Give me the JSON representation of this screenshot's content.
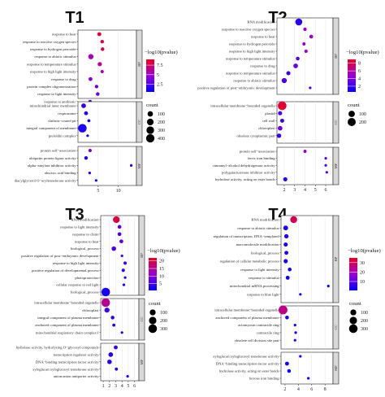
{
  "legend_labels": {
    "color_title": "−log10(pvalue)",
    "size_title": "count"
  },
  "chart_data": [
    {
      "title": "T1",
      "type": "scatter",
      "x_ticks": [
        5,
        10
      ],
      "xlim": [
        0,
        14.5
      ],
      "color_ticks": [
        2.5,
        5.0,
        7.5
      ],
      "color_range": [
        0.5,
        9
      ],
      "size_ticks": [
        100,
        200,
        300,
        400
      ],
      "size_range": [
        10,
        450
      ],
      "panels": [
        {
          "label": "BP",
          "points": [
            {
              "term": "response to heat",
              "x": 5.3,
              "count": 30,
              "color": 8.5
            },
            {
              "term": "response to reactive oxygen species",
              "x": 6.0,
              "count": 22,
              "color": 8.0
            },
            {
              "term": "response to hydrogen peroxide",
              "x": 6.1,
              "count": 22,
              "color": 7.8
            },
            {
              "term": "response to abiotic stimulus",
              "x": 3.2,
              "count": 90,
              "color": 5.5
            },
            {
              "term": "response to temperature stimulus",
              "x": 5.4,
              "count": 40,
              "color": 6.5
            },
            {
              "term": "response to high light intensity",
              "x": 6.0,
              "count": 15,
              "color": 5.5
            },
            {
              "term": "response to drug",
              "x": 3.1,
              "count": 28,
              "color": 4.0
            },
            {
              "term": "protein complex oligomerization",
              "x": 4.6,
              "count": 20,
              "color": 3.5
            },
            {
              "term": "response to light intensity",
              "x": 4.9,
              "count": 22,
              "color": 3.5
            },
            {
              "term": "response to antibiotic",
              "x": 3.0,
              "count": 18,
              "color": 3.0
            }
          ]
        },
        {
          "label": "CC",
          "points": [
            {
              "term": "mitochondrial inner membrane",
              "x": 1.4,
              "count": 60,
              "color": 2.0
            },
            {
              "term": "respirasome",
              "x": 2.0,
              "count": 30,
              "color": 1.5
            },
            {
              "term": "clathrin−coated pit",
              "x": 2.7,
              "count": 12,
              "color": 1.2
            },
            {
              "term": "integral component of membrane",
              "x": 1.1,
              "count": 420,
              "color": 1.2
            },
            {
              "term": "prefoldin complex",
              "x": 2.4,
              "count": 10,
              "color": 1.0
            }
          ]
        },
        {
          "label": "MF",
          "points": [
            {
              "term": "protein self−association",
              "x": 3.0,
              "count": 15,
              "color": 3.5
            },
            {
              "term": "ubiquitin protein ligase activity",
              "x": 2.0,
              "count": 20,
              "color": 1.5
            },
            {
              "term": "alpha−amylase inhibitor activity",
              "x": 13.2,
              "count": 8,
              "color": 1.3
            },
            {
              "term": "abscisic acid binding",
              "x": 2.9,
              "count": 10,
              "color": 1.2
            },
            {
              "term": "diacylglycerol O−acyltransferase activity",
              "x": 4.5,
              "count": 6,
              "color": 1.0
            }
          ]
        }
      ]
    },
    {
      "title": "T2",
      "type": "scatter",
      "x_ticks": [
        2,
        3,
        4,
        5,
        6
      ],
      "xlim": [
        1.3,
        6.7
      ],
      "color_ticks": [
        2,
        4,
        6,
        8
      ],
      "color_range": [
        0.5,
        9
      ],
      "size_ticks": [
        100,
        200
      ],
      "size_range": [
        10,
        250
      ],
      "panels": [
        {
          "label": "BP",
          "points": [
            {
              "term": "RNA modification",
              "x": 3.4,
              "count": 130,
              "color": 1.5
            },
            {
              "term": "response to reactive oxygen species",
              "x": 4.0,
              "count": 14,
              "color": 4.5
            },
            {
              "term": "response to heat",
              "x": 4.6,
              "count": 20,
              "color": 5.0
            },
            {
              "term": "response to hydrogen peroxide",
              "x": 3.9,
              "count": 12,
              "color": 4.5
            },
            {
              "term": "response to high light intensity",
              "x": 4.1,
              "count": 13,
              "color": 4.5
            },
            {
              "term": "response to temperature stimulus",
              "x": 3.3,
              "count": 18,
              "color": 3.0
            },
            {
              "term": "response to drug",
              "x": 3.1,
              "count": 35,
              "color": 3.5
            },
            {
              "term": "response to temperature stimulus",
              "x": 2.4,
              "count": 25,
              "color": 2.0
            },
            {
              "term": "response to abiotic stimulus",
              "x": 2.0,
              "count": 50,
              "color": 2.5
            },
            {
              "term": "positive regulation of post−embryonic development",
              "x": 4.5,
              "count": 6,
              "color": 2.5
            }
          ]
        },
        {
          "label": "CC",
          "points": [
            {
              "term": "intracellular membrane−bounded organelle",
              "x": 1.8,
              "count": 240,
              "color": 8.5
            },
            {
              "term": "plastid",
              "x": 1.6,
              "count": 25,
              "color": 2.5
            },
            {
              "term": "cell wall",
              "x": 1.8,
              "count": 22,
              "color": 2.0
            },
            {
              "term": "chloroplast",
              "x": 1.6,
              "count": 35,
              "color": 3.5
            },
            {
              "term": "obsolete cytoplasmic part",
              "x": 1.5,
              "count": 30,
              "color": 2.0
            }
          ]
        },
        {
          "label": "MF",
          "points": [
            {
              "term": "protein self−association",
              "x": 4.0,
              "count": 12,
              "color": 4.5
            },
            {
              "term": "ferric iron binding",
              "x": 6.0,
              "count": 6,
              "color": 3.0
            },
            {
              "term": "cinnamyl−alcohol dehydrogenase activity",
              "x": 6.0,
              "count": 6,
              "color": 2.5
            },
            {
              "term": "polygalacturonase inhibitor activity",
              "x": 6.1,
              "count": 6,
              "color": 2.5
            },
            {
              "term": "hydrolase activity, acting on ester bonds",
              "x": 2.1,
              "count": 25,
              "color": 1.5
            }
          ]
        }
      ]
    },
    {
      "title": "T3",
      "type": "scatter",
      "x_ticks": [
        1,
        2,
        3,
        4,
        5,
        6
      ],
      "xlim": [
        0.6,
        6.7
      ],
      "color_ticks": [
        5,
        10,
        15,
        20
      ],
      "color_range": [
        0.5,
        22
      ],
      "size_ticks": [
        100,
        200,
        300
      ],
      "size_range": [
        10,
        320
      ],
      "panels": [
        {
          "label": "BP",
          "points": [
            {
              "term": "RNA modification",
              "x": 3.1,
              "count": 150,
              "color": 20
            },
            {
              "term": "response to light intensity",
              "x": 3.6,
              "count": 22,
              "color": 7.0
            },
            {
              "term": "response to chitin",
              "x": 3.6,
              "count": 22,
              "color": 6.0
            },
            {
              "term": "response to heat",
              "x": 3.9,
              "count": 22,
              "color": 7.0
            },
            {
              "term": "biological_process",
              "x": 2.7,
              "count": 40,
              "color": 6.0
            },
            {
              "term": "positive regulation of post−embryonic development",
              "x": 4.0,
              "count": 10,
              "color": 6.0
            },
            {
              "term": "response to high light intensity",
              "x": 4.5,
              "count": 15,
              "color": 5.0
            },
            {
              "term": "positive regulation of developmental process",
              "x": 4.2,
              "count": 14,
              "color": 4.0
            },
            {
              "term": "photoprotection",
              "x": 4.5,
              "count": 5,
              "color": 3.0
            },
            {
              "term": "cellular response to red light",
              "x": 4.3,
              "count": 5,
              "color": 3.0
            },
            {
              "term": "biological_process",
              "x": 1.4,
              "count": 300,
              "color": 2.0
            }
          ]
        },
        {
          "label": "CC",
          "points": [
            {
              "term": "intracellular membrane−bounded organelle",
              "x": 1.4,
              "count": 300,
              "color": 15
            },
            {
              "term": "chloroplast",
              "x": 1.6,
              "count": 60,
              "color": 5.0
            },
            {
              "term": "integral component of plasma membrane",
              "x": 2.5,
              "count": 20,
              "color": 4.0
            },
            {
              "term": "anchored component of plasma membrane",
              "x": 2.7,
              "count": 12,
              "color": 3.0
            },
            {
              "term": "mitochondrial respiratory chain complex I",
              "x": 4.0,
              "count": 8,
              "color": 2.5
            }
          ]
        },
        {
          "label": "MF",
          "points": [
            {
              "term": "hydrolase activity, hydrolyzing O−glycosyl compounds",
              "x": 3.0,
              "count": 25,
              "color": 5.5
            },
            {
              "term": "transcription regulator activity",
              "x": 2.2,
              "count": 45,
              "color": 3.5
            },
            {
              "term": "DNA−binding transcription factor activity",
              "x": 2.0,
              "count": 40,
              "color": 3.0
            },
            {
              "term": "xyloglucan:xyloglucosyl transferase activity",
              "x": 3.1,
              "count": 12,
              "color": 3.0
            },
            {
              "term": "anion:anion antiporter activity",
              "x": 4.9,
              "count": 8,
              "color": 2.5
            }
          ]
        }
      ]
    },
    {
      "title": "T4",
      "type": "scatter",
      "x_ticks": [
        2,
        4,
        6,
        8
      ],
      "xlim": [
        1.4,
        9.2
      ],
      "color_ticks": [
        10,
        20,
        30
      ],
      "color_range": [
        0.5,
        35
      ],
      "size_ticks": [
        100,
        200,
        300
      ],
      "size_range": [
        10,
        320
      ],
      "panels": [
        {
          "label": "BP",
          "points": [
            {
              "term": "RNA modification",
              "x": 3.3,
              "count": 160,
              "color": 30
            },
            {
              "term": "response to abiotic stimulus",
              "x": 2.1,
              "count": 50,
              "color": 5.0
            },
            {
              "term": "regulation of transcription, DNA−templated",
              "x": 2.2,
              "count": 35,
              "color": 4.0
            },
            {
              "term": "macromolecule modification",
              "x": 2.1,
              "count": 30,
              "color": 3.5
            },
            {
              "term": "biological_process",
              "x": 2.2,
              "count": 25,
              "color": 3.0
            },
            {
              "term": "regulation of cellular metabolic process",
              "x": 2.1,
              "count": 30,
              "color": 3.0
            },
            {
              "term": "response to light intensity",
              "x": 2.7,
              "count": 20,
              "color": 3.0
            },
            {
              "term": "response to stimulus",
              "x": 2.4,
              "count": 25,
              "color": 2.5
            },
            {
              "term": "mitochondrial mRNA processing",
              "x": 8.5,
              "count": 6,
              "color": 2.0
            },
            {
              "term": "response to blue light",
              "x": 4.3,
              "count": 10,
              "color": 2.0
            }
          ]
        },
        {
          "label": "CC",
          "points": [
            {
              "term": "intracellular membrane−bounded organelle",
              "x": 1.7,
              "count": 320,
              "color": 25
            },
            {
              "term": "anchored component of plasma membrane",
              "x": 2.3,
              "count": 20,
              "color": 3.0
            },
            {
              "term": "actomyosin contractile ring",
              "x": 3.5,
              "count": 8,
              "color": 2.5
            },
            {
              "term": "contractile ring",
              "x": 3.6,
              "count": 8,
              "color": 2.5
            },
            {
              "term": "obsolete cell division site part",
              "x": 3.5,
              "count": 8,
              "color": 2.5
            }
          ]
        },
        {
          "label": "MF",
          "points": [
            {
              "term": "xyloglucan:xyloglucosyl transferase activity",
              "x": 4.3,
              "count": 10,
              "color": 4.0
            },
            {
              "term": "DNA−binding transcription factor activity",
              "x": 2.3,
              "count": 25,
              "color": 3.0
            },
            {
              "term": "hydrolase activity, acting on ester bonds",
              "x": 2.6,
              "count": 20,
              "color": 2.5
            },
            {
              "term": "ferrous iron binding",
              "x": 5.5,
              "count": 8,
              "color": 2.0
            }
          ]
        }
      ]
    }
  ]
}
